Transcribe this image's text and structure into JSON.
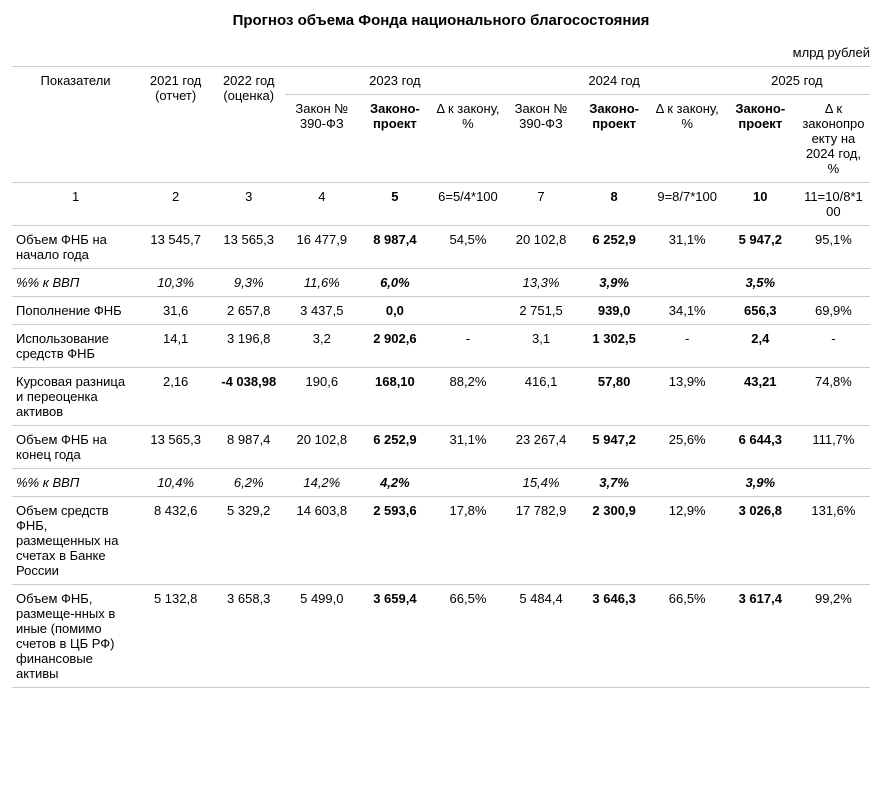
{
  "title": "Прогноз объема Фонда национального благосостояния",
  "unit": "млрд рублей",
  "header": {
    "r1": {
      "c0": "Показатели",
      "c1": "2021 год (отчет)",
      "c2": "2022 год (оценка)",
      "c3": "2023 год",
      "c4": "2024 год",
      "c5": "2025 год"
    },
    "r2": {
      "c3a": "Закон № 390-ФЗ",
      "c3b": "Законо-проект",
      "c3c": "Δ к закону, %",
      "c4a": "Закон № 390-ФЗ",
      "c4b": "Законо-проект",
      "c4c": "Δ к закону, %",
      "c5a": "Законо-проект",
      "c5b": "Δ к законопроекту на 2024 год, %"
    }
  },
  "formula_row": [
    "1",
    "2",
    "3",
    "4",
    "5",
    "6=5/4*100",
    "7",
    "8",
    "9=8/7*100",
    "10",
    "11=10/8*100"
  ],
  "rows": [
    {
      "label": "Объем ФНБ на начало года",
      "italic": false,
      "cells": [
        {
          "v": "13 545,7",
          "b": false
        },
        {
          "v": "13 565,3",
          "b": false
        },
        {
          "v": "16 477,9",
          "b": false
        },
        {
          "v": "8 987,4",
          "b": true
        },
        {
          "v": "54,5%",
          "b": false
        },
        {
          "v": "20 102,8",
          "b": false
        },
        {
          "v": "6 252,9",
          "b": true
        },
        {
          "v": "31,1%",
          "b": false
        },
        {
          "v": "5 947,2",
          "b": true
        },
        {
          "v": "95,1%",
          "b": false
        }
      ]
    },
    {
      "label": "%% к ВВП",
      "italic": true,
      "cells": [
        {
          "v": "10,3%",
          "b": false
        },
        {
          "v": "9,3%",
          "b": false
        },
        {
          "v": "11,6%",
          "b": false
        },
        {
          "v": "6,0%",
          "b": true
        },
        {
          "v": "",
          "b": false
        },
        {
          "v": "13,3%",
          "b": false
        },
        {
          "v": "3,9%",
          "b": true
        },
        {
          "v": "",
          "b": false
        },
        {
          "v": "3,5%",
          "b": true
        },
        {
          "v": "",
          "b": false
        }
      ]
    },
    {
      "label": "Пополнение ФНБ",
      "italic": false,
      "cells": [
        {
          "v": "31,6",
          "b": false
        },
        {
          "v": "2 657,8",
          "b": false
        },
        {
          "v": "3 437,5",
          "b": false
        },
        {
          "v": "0,0",
          "b": true
        },
        {
          "v": "",
          "b": false
        },
        {
          "v": "2 751,5",
          "b": false
        },
        {
          "v": "939,0",
          "b": true
        },
        {
          "v": "34,1%",
          "b": false
        },
        {
          "v": "656,3",
          "b": true
        },
        {
          "v": "69,9%",
          "b": false
        }
      ]
    },
    {
      "label": "Использование средств ФНБ",
      "italic": false,
      "cells": [
        {
          "v": "14,1",
          "b": false
        },
        {
          "v": "3 196,8",
          "b": false
        },
        {
          "v": "3,2",
          "b": false
        },
        {
          "v": "2 902,6",
          "b": true
        },
        {
          "v": "-",
          "b": false
        },
        {
          "v": "3,1",
          "b": false
        },
        {
          "v": "1 302,5",
          "b": true
        },
        {
          "v": "-",
          "b": false
        },
        {
          "v": "2,4",
          "b": true
        },
        {
          "v": "-",
          "b": false
        }
      ]
    },
    {
      "label": "Курсовая разница и переоценка активов",
      "italic": false,
      "cells": [
        {
          "v": "2,16",
          "b": false
        },
        {
          "v": "-4 038,98",
          "b": true
        },
        {
          "v": "190,6",
          "b": false
        },
        {
          "v": "168,10",
          "b": true
        },
        {
          "v": "88,2%",
          "b": false
        },
        {
          "v": "416,1",
          "b": false
        },
        {
          "v": "57,80",
          "b": true
        },
        {
          "v": "13,9%",
          "b": false
        },
        {
          "v": "43,21",
          "b": true
        },
        {
          "v": "74,8%",
          "b": false
        }
      ]
    },
    {
      "label": "Объем ФНБ на конец года",
      "italic": false,
      "cells": [
        {
          "v": "13 565,3",
          "b": false
        },
        {
          "v": "8 987,4",
          "b": false
        },
        {
          "v": "20 102,8",
          "b": false
        },
        {
          "v": "6 252,9",
          "b": true
        },
        {
          "v": "31,1%",
          "b": false
        },
        {
          "v": "23 267,4",
          "b": false
        },
        {
          "v": "5 947,2",
          "b": true
        },
        {
          "v": "25,6%",
          "b": false
        },
        {
          "v": "6 644,3",
          "b": true
        },
        {
          "v": "111,7%",
          "b": false
        }
      ]
    },
    {
      "label": "%% к ВВП",
      "italic": true,
      "cells": [
        {
          "v": "10,4%",
          "b": false
        },
        {
          "v": "6,2%",
          "b": false
        },
        {
          "v": "14,2%",
          "b": false
        },
        {
          "v": "4,2%",
          "b": true
        },
        {
          "v": "",
          "b": false
        },
        {
          "v": "15,4%",
          "b": false
        },
        {
          "v": "3,7%",
          "b": true
        },
        {
          "v": "",
          "b": false
        },
        {
          "v": "3,9%",
          "b": true
        },
        {
          "v": "",
          "b": false
        }
      ]
    },
    {
      "label": "Объем средств ФНБ, размещенных на счетах в Банке России",
      "italic": false,
      "cells": [
        {
          "v": "8 432,6",
          "b": false
        },
        {
          "v": "5 329,2",
          "b": false
        },
        {
          "v": "14 603,8",
          "b": false
        },
        {
          "v": "2 593,6",
          "b": true
        },
        {
          "v": "17,8%",
          "b": false
        },
        {
          "v": "17 782,9",
          "b": false
        },
        {
          "v": "2 300,9",
          "b": true
        },
        {
          "v": "12,9%",
          "b": false
        },
        {
          "v": "3 026,8",
          "b": true
        },
        {
          "v": "131,6%",
          "b": false
        }
      ]
    },
    {
      "label": "Объем ФНБ, размеще-нных в иные (помимо счетов в ЦБ РФ) финансовые активы",
      "italic": false,
      "cells": [
        {
          "v": "5 132,8",
          "b": false
        },
        {
          "v": "3 658,3",
          "b": false
        },
        {
          "v": "5 499,0",
          "b": false
        },
        {
          "v": "3 659,4",
          "b": true
        },
        {
          "v": "66,5%",
          "b": false
        },
        {
          "v": "5 484,4",
          "b": false
        },
        {
          "v": "3 646,3",
          "b": true
        },
        {
          "v": "66,5%",
          "b": false
        },
        {
          "v": "3 617,4",
          "b": true
        },
        {
          "v": "99,2%",
          "b": false
        }
      ]
    }
  ]
}
